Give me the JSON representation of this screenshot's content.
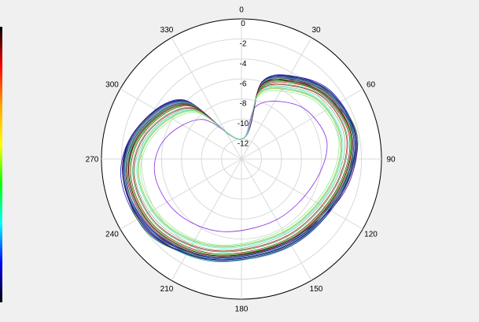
{
  "chart_data": {
    "type": "polar-line",
    "title": "",
    "angle_ticks": [
      "0",
      "30",
      "60",
      "90",
      "120",
      "150",
      "180",
      "210",
      "240",
      "270",
      "300",
      "330"
    ],
    "radial_ticks": [
      "0",
      "-2",
      "-4",
      "-6",
      "-8",
      "-10",
      "-12"
    ],
    "r_range": [
      -14,
      0
    ],
    "grid": true,
    "angle_direction": "clockwise, 0 at top",
    "series_count": 28,
    "series": [
      {
        "color": "#000000",
        "values": [
          -12,
          -6.2,
          -4.3,
          -3.0,
          -2.3,
          -3.6,
          -4.2,
          -3.7,
          -2.3,
          -2.0,
          -3.1,
          -5.8,
          -12
        ]
      },
      {
        "color": "#1f1fd0",
        "values": [
          -12,
          -6.0,
          -4.0,
          -2.7,
          -2.4,
          -3.8,
          -4.3,
          -3.6,
          -2.2,
          -1.8,
          -3.0,
          -5.6,
          -12
        ]
      },
      {
        "color": "#0050a0",
        "values": [
          -12,
          -6.4,
          -4.2,
          -3.1,
          -2.5,
          -3.4,
          -4.0,
          -3.5,
          -2.6,
          -2.2,
          -3.3,
          -6.0,
          -12
        ]
      },
      {
        "color": "#8b1a1a",
        "values": [
          -12,
          -6.1,
          -4.4,
          -3.2,
          -2.8,
          -3.9,
          -4.5,
          -3.9,
          -2.7,
          -2.4,
          -3.4,
          -6.2,
          -12
        ]
      },
      {
        "color": "#228b22",
        "values": [
          -12,
          -6.5,
          -4.6,
          -3.0,
          -2.2,
          -3.5,
          -4.4,
          -3.8,
          -2.1,
          -2.1,
          -3.2,
          -5.9,
          -12
        ]
      },
      {
        "color": "#20b2aa",
        "values": [
          -12,
          -6.3,
          -4.1,
          -2.9,
          -2.6,
          -3.7,
          -4.1,
          -3.4,
          -2.4,
          -2.3,
          -3.5,
          -6.1,
          -12
        ]
      },
      {
        "color": "#4b0082",
        "values": [
          -12,
          -6.0,
          -4.5,
          -3.3,
          -2.3,
          -3.3,
          -4.6,
          -3.9,
          -2.5,
          -2.0,
          -3.0,
          -5.7,
          -12
        ]
      },
      {
        "color": "#556b2f",
        "values": [
          -12,
          -6.6,
          -4.3,
          -2.8,
          -2.7,
          -3.6,
          -4.2,
          -3.7,
          -2.8,
          -2.5,
          -3.6,
          -6.3,
          -12
        ]
      },
      {
        "color": "#2e2e8f",
        "values": [
          -12,
          -6.2,
          -4.0,
          -3.0,
          -2.4,
          -3.8,
          -4.3,
          -3.6,
          -2.3,
          -2.1,
          -3.1,
          -5.8,
          -12
        ]
      },
      {
        "color": "#006400",
        "values": [
          -12,
          -6.4,
          -4.7,
          -3.4,
          -2.9,
          -4.0,
          -4.7,
          -4.0,
          -2.9,
          -2.6,
          -3.7,
          -6.4,
          -12
        ]
      },
      {
        "color": "#a52a2a",
        "values": [
          -12,
          -6.7,
          -4.8,
          -3.5,
          -3.0,
          -4.1,
          -4.8,
          -4.2,
          -3.1,
          -2.8,
          -3.9,
          -6.5,
          -12
        ]
      },
      {
        "color": "#0000cd",
        "values": [
          -12,
          -6.1,
          -4.2,
          -2.9,
          -2.5,
          -3.5,
          -4.4,
          -3.8,
          -2.6,
          -2.2,
          -3.2,
          -5.9,
          -12
        ]
      },
      {
        "color": "#2f4f4f",
        "values": [
          -12,
          -6.3,
          -4.4,
          -3.1,
          -2.6,
          -3.7,
          -4.5,
          -3.9,
          -2.4,
          -2.3,
          -3.4,
          -6.1,
          -12
        ]
      },
      {
        "color": "#3cb371",
        "values": [
          -12,
          -6.8,
          -5.0,
          -3.6,
          -3.2,
          -4.3,
          -5.0,
          -4.4,
          -3.3,
          -3.0,
          -4.1,
          -6.7,
          -12
        ]
      },
      {
        "color": "#8fbc8f",
        "values": [
          -12,
          -7.0,
          -5.3,
          -3.9,
          -3.5,
          -4.6,
          -5.3,
          -4.6,
          -3.6,
          -3.2,
          -4.4,
          -6.9,
          -12
        ]
      },
      {
        "color": "#66cdaa",
        "values": [
          -12,
          -7.2,
          -5.5,
          -4.2,
          -3.8,
          -4.8,
          -5.5,
          -4.9,
          -3.9,
          -3.5,
          -4.6,
          -7.1,
          -12
        ]
      },
      {
        "color": "#90ee90",
        "values": [
          -12,
          -7.5,
          -5.8,
          -4.5,
          -4.1,
          -5.1,
          -5.8,
          -5.1,
          -4.2,
          -3.8,
          -4.9,
          -7.4,
          -12
        ]
      },
      {
        "color": "#b22222",
        "values": [
          -12,
          -6.9,
          -5.1,
          -3.7,
          -3.3,
          -4.4,
          -5.1,
          -4.5,
          -3.4,
          -3.1,
          -4.2,
          -6.8,
          -12
        ]
      },
      {
        "color": "#9acd32",
        "values": [
          -12,
          -7.3,
          -5.6,
          -4.3,
          -3.9,
          -4.9,
          -5.6,
          -5.0,
          -4.0,
          -3.6,
          -4.7,
          -7.2,
          -12
        ]
      },
      {
        "color": "#8a2be2",
        "values": [
          -12,
          -8.6,
          -7.0,
          -5.8,
          -5.3,
          -6.4,
          -7.0,
          -6.5,
          -5.6,
          -5.2,
          -6.1,
          -8.4,
          -12
        ]
      },
      {
        "color": "#5f9ea0",
        "values": [
          -12,
          -6.2,
          -4.3,
          -3.0,
          -2.3,
          -3.6,
          -4.3,
          -3.7,
          -2.5,
          -2.2,
          -3.3,
          -6.0,
          -12
        ]
      },
      {
        "color": "#191970",
        "values": [
          -12,
          -6.0,
          -4.1,
          -2.8,
          -2.4,
          -3.5,
          -4.2,
          -3.6,
          -2.3,
          -2.0,
          -3.0,
          -5.7,
          -12
        ]
      },
      {
        "color": "#708090",
        "values": [
          -12,
          -6.5,
          -4.5,
          -3.2,
          -2.7,
          -3.8,
          -4.6,
          -3.9,
          -2.8,
          -2.5,
          -3.5,
          -6.2,
          -12
        ]
      },
      {
        "color": "#483d8b",
        "values": [
          -12,
          -6.1,
          -4.2,
          -2.9,
          -2.3,
          -3.4,
          -4.1,
          -3.5,
          -2.4,
          -2.1,
          -3.1,
          -5.8,
          -12
        ]
      },
      {
        "color": "#32cd32",
        "values": [
          -12,
          -6.6,
          -4.7,
          -3.3,
          -2.9,
          -4.0,
          -4.7,
          -4.1,
          -3.0,
          -2.7,
          -3.8,
          -6.4,
          -12
        ]
      },
      {
        "color": "#4682b4",
        "values": [
          -12,
          -6.3,
          -4.3,
          -3.0,
          -2.5,
          -3.6,
          -4.3,
          -3.7,
          -2.5,
          -2.2,
          -3.2,
          -5.9,
          -12
        ]
      },
      {
        "color": "#800000",
        "values": [
          -12,
          -6.4,
          -4.6,
          -3.3,
          -2.8,
          -3.9,
          -4.6,
          -4.0,
          -2.9,
          -2.6,
          -3.6,
          -6.3,
          -12
        ]
      },
      {
        "color": "#7fffd4",
        "values": [
          -12,
          -7.1,
          -5.4,
          -4.1,
          -3.7,
          -4.7,
          -5.4,
          -4.8,
          -3.8,
          -3.4,
          -4.5,
          -7.0,
          -12
        ]
      }
    ],
    "series_angles_deg": [
      0,
      15,
      35,
      55,
      80,
      110,
      150,
      195,
      230,
      260,
      285,
      315,
      360
    ],
    "colorbar_colors": [
      "#000000",
      "#ff0000",
      "#ffa500",
      "#ffff00",
      "#00ff00",
      "#00ffff",
      "#0000ff",
      "#000000"
    ]
  }
}
